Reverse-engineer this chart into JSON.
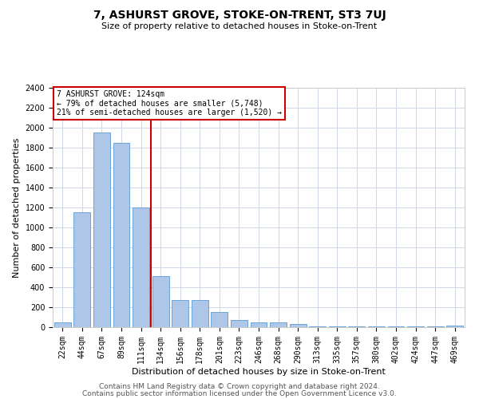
{
  "title": "7, ASHURST GROVE, STOKE-ON-TRENT, ST3 7UJ",
  "subtitle": "Size of property relative to detached houses in Stoke-on-Trent",
  "xlabel": "Distribution of detached houses by size in Stoke-on-Trent",
  "ylabel": "Number of detached properties",
  "categories": [
    "22sqm",
    "44sqm",
    "67sqm",
    "89sqm",
    "111sqm",
    "134sqm",
    "156sqm",
    "178sqm",
    "201sqm",
    "223sqm",
    "246sqm",
    "268sqm",
    "290sqm",
    "313sqm",
    "335sqm",
    "357sqm",
    "380sqm",
    "402sqm",
    "424sqm",
    "447sqm",
    "469sqm"
  ],
  "values": [
    50,
    1150,
    1950,
    1850,
    1200,
    510,
    270,
    270,
    150,
    70,
    50,
    45,
    30,
    10,
    10,
    5,
    5,
    5,
    5,
    5,
    15
  ],
  "bar_color": "#aec6e8",
  "bar_edge_color": "#5b9bd5",
  "vline_x_index": 4.5,
  "vline_color": "#cc0000",
  "annotation_text": "7 ASHURST GROVE: 124sqm\n← 79% of detached houses are smaller (5,748)\n21% of semi-detached houses are larger (1,520) →",
  "annotation_box_color": "#ffffff",
  "annotation_border_color": "#cc0000",
  "ylim": [
    0,
    2400
  ],
  "yticks": [
    0,
    200,
    400,
    600,
    800,
    1000,
    1200,
    1400,
    1600,
    1800,
    2000,
    2200,
    2400
  ],
  "footer_line1": "Contains HM Land Registry data © Crown copyright and database right 2024.",
  "footer_line2": "Contains public sector information licensed under the Open Government Licence v3.0.",
  "bg_color": "#ffffff",
  "grid_color": "#d0d8e8",
  "title_fontsize": 10,
  "subtitle_fontsize": 8,
  "ylabel_fontsize": 8,
  "xlabel_fontsize": 8,
  "tick_fontsize": 7,
  "annotation_fontsize": 7,
  "footer_fontsize": 6.5
}
